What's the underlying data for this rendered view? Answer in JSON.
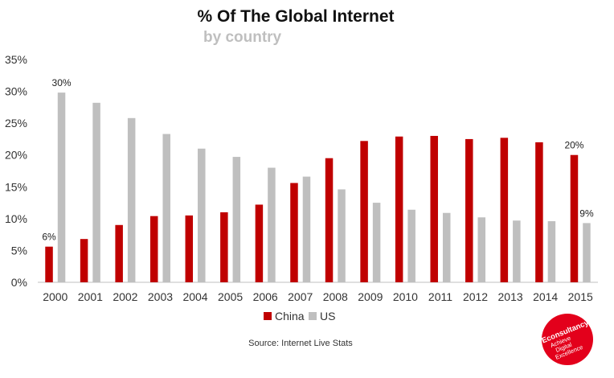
{
  "chart_data": {
    "type": "bar",
    "title": "% Of The Global Internet",
    "subtitle": "by country",
    "categories": [
      "2000",
      "2001",
      "2002",
      "2003",
      "2004",
      "2005",
      "2006",
      "2007",
      "2008",
      "2009",
      "2010",
      "2011",
      "2012",
      "2013",
      "2014",
      "2015"
    ],
    "series": [
      {
        "name": "China",
        "color": "#c00000",
        "values": [
          5.6,
          6.8,
          9.0,
          10.4,
          10.5,
          11.0,
          12.2,
          15.6,
          19.5,
          22.2,
          22.9,
          23.0,
          22.5,
          22.7,
          22.0,
          20.0
        ]
      },
      {
        "name": "US",
        "color": "#bfbfbf",
        "values": [
          29.8,
          28.2,
          25.8,
          23.3,
          21.0,
          19.7,
          18.0,
          16.6,
          14.6,
          12.5,
          11.4,
          10.9,
          10.2,
          9.7,
          9.6,
          9.3
        ]
      }
    ],
    "ylim": [
      0,
      35
    ],
    "yticks": [
      "0%",
      "5%",
      "10%",
      "15%",
      "20%",
      "25%",
      "30%",
      "35%"
    ],
    "ytick_values": [
      0,
      5,
      10,
      15,
      20,
      25,
      30,
      35
    ],
    "data_labels": [
      {
        "series": 0,
        "index": 0,
        "text": "6%"
      },
      {
        "series": 1,
        "index": 0,
        "text": "30%"
      },
      {
        "series": 0,
        "index": 15,
        "text": "20%"
      },
      {
        "series": 1,
        "index": 15,
        "text": "9%"
      }
    ],
    "legend_position": "bottom",
    "grid": false
  },
  "source_text": "Source: Internet Live Stats",
  "logo": {
    "brand": "Econsultancy",
    "tagline_1": "Achieve",
    "tagline_2": "Digital",
    "tagline_3": "Excellence",
    "color": "#e3001b"
  }
}
